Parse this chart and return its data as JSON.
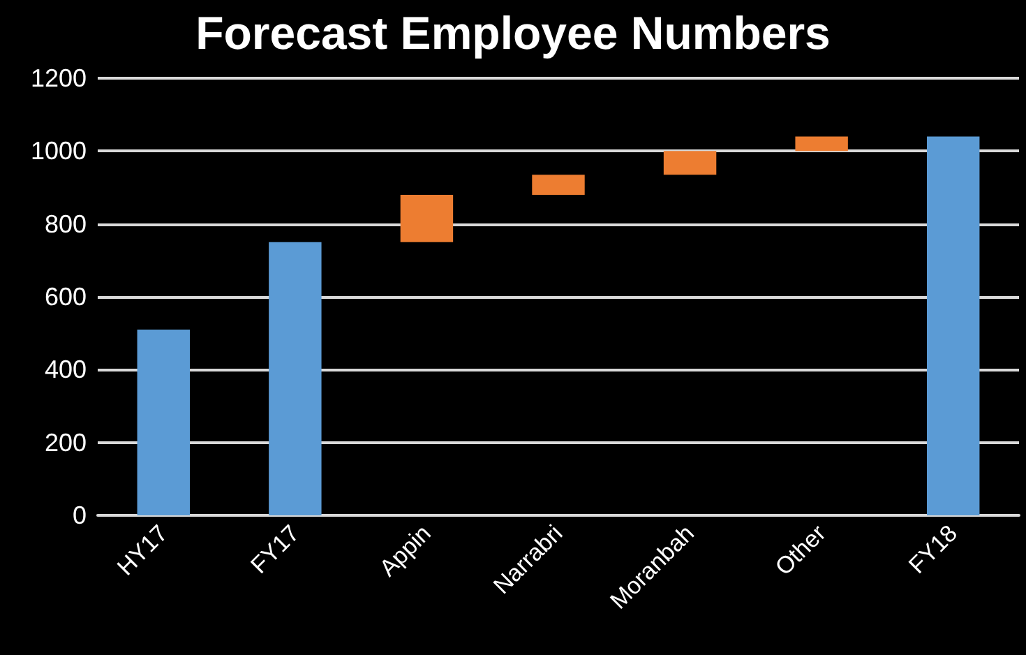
{
  "chart_data": {
    "type": "bar",
    "title": "Forecast Employee Numbers",
    "categories": [
      "HY17",
      "FY17",
      "Appin",
      "Narrabri",
      "Moranbah",
      "Other",
      "FY18"
    ],
    "values": [
      510,
      750,
      130,
      55,
      65,
      40,
      1040
    ],
    "base": [
      0,
      0,
      750,
      880,
      935,
      1000,
      0
    ],
    "colors": [
      "#5b9bd5",
      "#5b9bd5",
      "#ed7d31",
      "#ed7d31",
      "#ed7d31",
      "#ed7d31",
      "#5b9bd5"
    ],
    "ylim": [
      0,
      1200
    ],
    "yticks": [
      0,
      200,
      400,
      600,
      800,
      1000,
      1200
    ],
    "grid": "y"
  }
}
